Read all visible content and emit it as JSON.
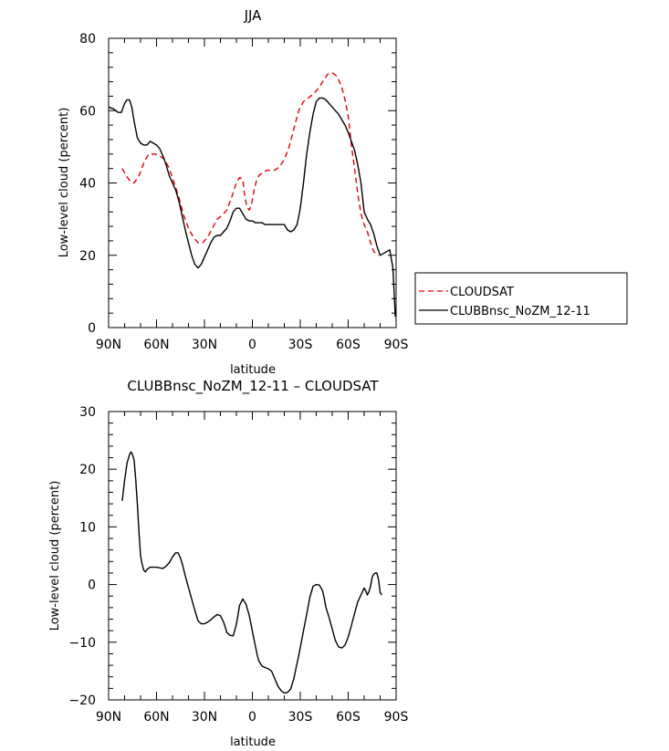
{
  "chart_data": [
    {
      "type": "line",
      "title": "JJA",
      "xlabel": "latitude",
      "ylabel": "Low-level cloud (percent)",
      "xlim": [
        90,
        -90
      ],
      "ylim": [
        0,
        80
      ],
      "x_ticks": [
        90,
        60,
        30,
        0,
        -30,
        -60,
        -90
      ],
      "x_tick_labels": [
        "90N",
        "60N",
        "30N",
        "0",
        "30S",
        "60S",
        "90S"
      ],
      "y_ticks": [
        0,
        20,
        40,
        60,
        80
      ],
      "y_tick_labels": [
        "0",
        "20",
        "40",
        "60",
        "80"
      ],
      "legend_position": "right",
      "series": [
        {
          "name": "CLOUDSAT",
          "color": "#e0000a",
          "dash": "dashed",
          "x": [
            81.5,
            79,
            76.5,
            74,
            71,
            68,
            65,
            61,
            58,
            55,
            52,
            49,
            46,
            43,
            40,
            37,
            34,
            31,
            28,
            25,
            22,
            19,
            16,
            13,
            10,
            8,
            6,
            5,
            3.5,
            2,
            0.5,
            -1,
            -2.5,
            -4,
            -5.5,
            -7,
            -9,
            -11,
            -14,
            -17,
            -20,
            -23,
            -26,
            -29,
            -32,
            -35,
            -38,
            -41,
            -44,
            -47,
            -50,
            -53,
            -56,
            -58,
            -60,
            -61,
            -62,
            -64,
            -66,
            -68,
            -70,
            -72,
            -74,
            -76,
            -79
          ],
          "y": [
            44,
            42,
            40.5,
            40,
            42,
            45.5,
            48,
            48,
            47.5,
            46.5,
            44,
            40,
            36,
            31,
            27.5,
            25,
            23.5,
            23.5,
            25,
            27.5,
            30,
            31,
            32.5,
            36,
            40,
            41.5,
            41,
            37,
            33.5,
            32.5,
            34,
            38,
            40.5,
            42,
            42.5,
            43,
            43.5,
            43.5,
            43.5,
            44.5,
            46.5,
            50,
            55,
            60,
            62.5,
            63.5,
            64.5,
            66,
            68,
            70,
            70.5,
            69.5,
            66.5,
            63,
            58.5,
            54.5,
            50.5,
            44,
            37,
            31.5,
            28.5,
            26.5,
            23.5,
            21,
            20
          ]
        },
        {
          "name": "CLUBBnsc_NoZM_12-11",
          "color": "#000000",
          "dash": "solid",
          "x": [
            90,
            87,
            84,
            82,
            80,
            78.5,
            77,
            75.5,
            74,
            72,
            70,
            68,
            66,
            64,
            62,
            60,
            58,
            56,
            54,
            52,
            50,
            48,
            46,
            44,
            42,
            40,
            38,
            36,
            34,
            32,
            30,
            28,
            26,
            24,
            22,
            20,
            18,
            16,
            14,
            12,
            10,
            8,
            6,
            4,
            2,
            0,
            -2,
            -4,
            -6,
            -8,
            -10,
            -12,
            -14,
            -16,
            -18,
            -20,
            -22,
            -24,
            -26,
            -28,
            -30,
            -32,
            -34,
            -36,
            -38,
            -40,
            -42,
            -44,
            -46,
            -48,
            -50,
            -52,
            -54,
            -56,
            -58,
            -60,
            -62,
            -64,
            -66,
            -68,
            -70,
            -72,
            -74,
            -76,
            -78,
            -80,
            -82,
            -84,
            -86,
            -88,
            -89.5
          ],
          "y": [
            61,
            60.5,
            59.5,
            59.5,
            62,
            63,
            63,
            61,
            57,
            52.5,
            51,
            50.5,
            50.5,
            51.5,
            51,
            50.5,
            49.5,
            47.5,
            45,
            42,
            40,
            38,
            35,
            31,
            27,
            23.5,
            20,
            17.5,
            16.5,
            17.5,
            19.5,
            21.5,
            23.5,
            25,
            25.5,
            25.5,
            26.5,
            27.5,
            29.5,
            32,
            33,
            33,
            31.5,
            30,
            29.5,
            29.5,
            29,
            29,
            29,
            28.5,
            28.5,
            28.5,
            28.5,
            28.5,
            28.5,
            28.5,
            27,
            26.5,
            27,
            28.5,
            33,
            40,
            48,
            54,
            59,
            62.5,
            63.5,
            63.5,
            63,
            62,
            61,
            60,
            59,
            57.5,
            56,
            54,
            51.5,
            49,
            45,
            40,
            32,
            30,
            28.5,
            26,
            22.5,
            20,
            20.5,
            21,
            21.5,
            16.5,
            3
          ]
        }
      ]
    },
    {
      "type": "line",
      "title": "CLUBBnsc_NoZM_12-11 – CLOUDSAT",
      "xlabel": "latitude",
      "ylabel": "Low-level cloud (percent)",
      "xlim": [
        90,
        -90
      ],
      "ylim": [
        -20,
        30
      ],
      "x_ticks": [
        90,
        60,
        30,
        0,
        -30,
        -60,
        -90
      ],
      "x_tick_labels": [
        "90N",
        "60N",
        "30N",
        "0",
        "30S",
        "60S",
        "90S"
      ],
      "y_ticks": [
        -20,
        -10,
        0,
        10,
        20,
        30
      ],
      "y_tick_labels": [
        "−20",
        "−10",
        "0",
        "10",
        "20",
        "30"
      ],
      "series": [
        {
          "color": "#000000",
          "dash": "solid",
          "x": [
            81.5,
            80,
            78.5,
            77,
            76,
            75,
            74,
            73,
            72,
            71,
            70,
            69,
            68,
            67,
            66,
            64,
            62,
            60,
            58,
            56,
            54,
            52,
            50,
            48,
            46.5,
            45,
            43.5,
            42,
            40,
            38,
            36,
            34,
            32,
            30,
            28,
            26,
            24,
            22,
            20,
            18,
            16,
            14,
            12,
            10,
            8,
            6,
            4,
            2,
            1,
            0,
            -1,
            -2,
            -3,
            -4,
            -5,
            -6,
            -8,
            -10,
            -12,
            -14,
            -16,
            -18,
            -20,
            -22,
            -24,
            -26,
            -27.5,
            -29,
            -30.5,
            -32,
            -34,
            -36,
            -38,
            -40,
            -42,
            -44,
            -45,
            -46,
            -48,
            -50,
            -52,
            -54,
            -56,
            -58,
            -60,
            -62,
            -64,
            -66,
            -68,
            -70,
            -71,
            -72,
            -73,
            -74,
            -75,
            -76,
            -77,
            -78,
            -79,
            -80,
            -81
          ],
          "y": [
            14.5,
            18,
            21,
            22.5,
            23,
            22.5,
            21.5,
            18,
            14,
            9,
            5,
            3.5,
            2.5,
            2.2,
            2.6,
            3,
            3,
            3,
            2.9,
            2.8,
            3.2,
            3.8,
            4.8,
            5.5,
            5.5,
            4.6,
            3.2,
            1.5,
            -0.5,
            -2.5,
            -4.5,
            -6.3,
            -6.8,
            -6.8,
            -6.5,
            -6.1,
            -5.6,
            -5.2,
            -5.4,
            -6.5,
            -8.3,
            -8.8,
            -8.9,
            -6.9,
            -3.6,
            -2.5,
            -3.4,
            -5.3,
            -6.7,
            -8.1,
            -9.5,
            -10.8,
            -12.2,
            -13.2,
            -13.7,
            -14.1,
            -14.4,
            -14.6,
            -15,
            -16.3,
            -17.6,
            -18.4,
            -18.8,
            -18.7,
            -18.1,
            -16.3,
            -14.3,
            -12.3,
            -10.2,
            -8,
            -5.2,
            -2.2,
            -0.3,
            0,
            -0.1,
            -1.1,
            -2.4,
            -3.9,
            -5.7,
            -7.7,
            -9.7,
            -10.8,
            -11,
            -10.5,
            -9.1,
            -7.1,
            -5,
            -3,
            -1.8,
            -0.6,
            -1.1,
            -1.8,
            -1.2,
            -0.3,
            1.3,
            1.8,
            2,
            2,
            0.8,
            -1.4,
            -1.8
          ]
        }
      ]
    }
  ]
}
